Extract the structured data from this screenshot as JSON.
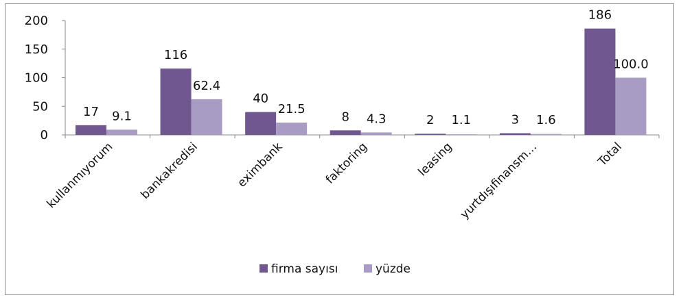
{
  "chart_data": {
    "type": "bar",
    "title": "",
    "xlabel": "",
    "ylabel": "",
    "ylim": [
      0,
      200
    ],
    "yticks": [
      0,
      50,
      100,
      150,
      200
    ],
    "grid": false,
    "legend_position": "bottom",
    "categories": [
      "kullanmıyorum",
      "bankakredisi",
      "eximbank",
      "faktoring",
      "leasing",
      "yurtdışıfinansm…",
      "Total"
    ],
    "series": [
      {
        "name": "firma sayısı",
        "color": "#70578f",
        "values": [
          17,
          116,
          40,
          8,
          2,
          3,
          186
        ],
        "labels": [
          "17",
          "116",
          "40",
          "8",
          "2",
          "3",
          "186"
        ]
      },
      {
        "name": "yüzde",
        "color": "#a89bc4",
        "values": [
          9.1,
          62.4,
          21.5,
          4.3,
          1.1,
          1.6,
          100.0
        ],
        "labels": [
          "9.1",
          "62.4",
          "21.5",
          "4.3",
          "1.1",
          "1.6",
          "100.0"
        ]
      }
    ]
  }
}
